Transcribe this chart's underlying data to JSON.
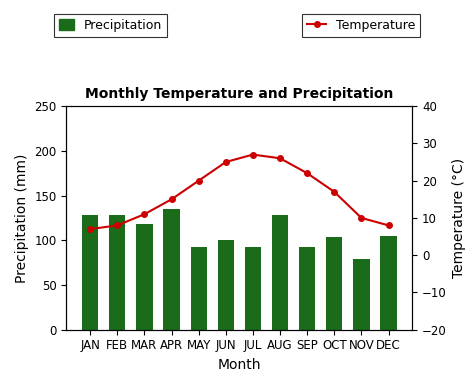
{
  "months": [
    "JAN",
    "FEB",
    "MAR",
    "APR",
    "MAY",
    "JUN",
    "JUL",
    "AUG",
    "SEP",
    "OCT",
    "NOV",
    "DEC"
  ],
  "precipitation": [
    128,
    128,
    118,
    135,
    92,
    100,
    92,
    128,
    93,
    104,
    79,
    105
  ],
  "temperature": [
    7,
    8,
    11,
    15,
    20,
    25,
    27,
    26,
    22,
    17,
    10,
    8
  ],
  "bar_color": "#1a6b1a",
  "line_color": "#cc0000",
  "marker_color": "#cc0000",
  "title": "Monthly Temperature and Precipitation",
  "xlabel": "Month",
  "ylabel_left": "Precipitation (mm)",
  "ylabel_right": "Temperature (°C)",
  "ylim_left": [
    0,
    250
  ],
  "ylim_right": [
    -20,
    40
  ],
  "yticks_left": [
    0,
    50,
    100,
    150,
    200,
    250
  ],
  "yticks_right": [
    -20,
    -10,
    0,
    10,
    20,
    30,
    40
  ],
  "legend_precip_label": "Precipitation",
  "legend_temp_label": "Temperature",
  "background_color": "#ffffff",
  "title_fontsize": 10,
  "axis_label_fontsize": 10,
  "tick_fontsize": 8.5,
  "legend_fontsize": 9
}
